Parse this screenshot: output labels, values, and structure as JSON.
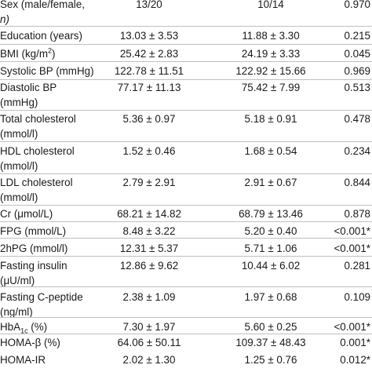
{
  "rows": [
    {
      "label": "Sex (male/female,",
      "label2": "n)",
      "v1": "13/20",
      "v2": "10/14",
      "p": "0.970"
    },
    {
      "label": "Education (years)",
      "v1": "13.03 ± 3.53",
      "v2": "11.88 ± 3.30",
      "p": "0.215"
    },
    {
      "label": "BMI (kg/m",
      "label_sup": "2",
      "label_tail": ")",
      "v1": "25.42 ± 2.83",
      "v2": "24.19 ± 3.33",
      "p": "0.045"
    },
    {
      "label": "Systolic BP (mmHg)",
      "v1": "122.78 ± 11.51",
      "v2": "122.92 ± 15.66",
      "p": "0.969"
    },
    {
      "label": "Diastolic BP",
      "label2": "(mmHg)",
      "v1": "77.17 ± 11.13",
      "v2": "75.42 ± 7.99",
      "p": "0.513"
    },
    {
      "label": "Total cholesterol",
      "label2": "(mmol/l)",
      "v1": "5.36 ± 0.97",
      "v2": "5.18 ± 0.91",
      "p": "0.478"
    },
    {
      "label": "HDL cholesterol",
      "label2": "(mmol/l)",
      "v1": "1.52 ± 0.46",
      "v2": "1.68 ± 0.54",
      "p": "0.234"
    },
    {
      "label": "LDL cholesterol",
      "label2": "(mmol/l)",
      "v1": "2.79 ± 2.91",
      "v2": "2.91 ± 0.67",
      "p": "0.844"
    },
    {
      "label": "Cr (μmol/L)",
      "v1": "68.21 ± 14.82",
      "v2": "68.79 ± 13.46",
      "p": "0.878"
    },
    {
      "label": "FPG (mmol/L)",
      "v1": "8.48 ± 3.22",
      "v2": "5.20 ± 0.40",
      "p": "<0.001*"
    },
    {
      "label": "2hPG (mmol/l)",
      "v1": "12.31 ± 5.37",
      "v2": "5.71 ± 1.06",
      "p": "<0.001*"
    },
    {
      "label": "Fasting insulin",
      "label2": "(μU/ml)",
      "v1": "12.86 ± 9.62",
      "v2": "10.44 ± 6.02",
      "p": "0.281"
    },
    {
      "label": "Fasting C-peptide",
      "label2": "(ng/ml)",
      "v1": "2.38 ± 1.09",
      "v2": "1.97 ± 0.68",
      "p": "0.109"
    },
    {
      "label": "HbA",
      "label_sub": "1c",
      "label_tail": " (%)",
      "v1": "7.30 ± 1.97",
      "v2": "5.60 ± 0.25",
      "p": "<0.001*"
    },
    {
      "label": "HOMA-β (%)",
      "v1": "64.06 ± 50.11",
      "v2": "109.37 ± 48.43",
      "p": "0.001*"
    },
    {
      "label": "HOMA-IR",
      "v1": "2.02 ± 1.30",
      "v2": "1.25 ± 0.76",
      "p": "0.012*"
    }
  ]
}
